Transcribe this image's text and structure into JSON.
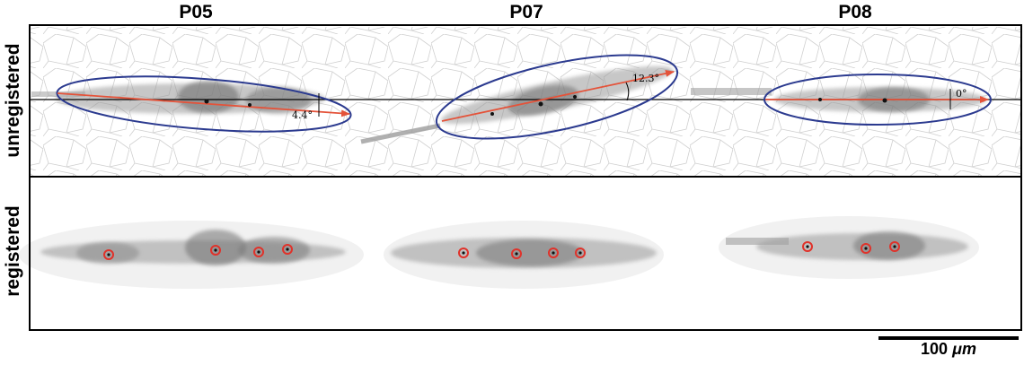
{
  "columns": [
    {
      "label": "P05",
      "angle_label": "4.4°"
    },
    {
      "label": "P07",
      "angle_label": "12.3°"
    },
    {
      "label": "P08",
      "angle_label": "0°"
    }
  ],
  "rows": {
    "unregistered": "unregistered",
    "registered": "registered"
  },
  "scale_bar": {
    "value": "100",
    "unit": "μm"
  },
  "colors": {
    "ellipse": "#2b3a8f",
    "axis_arrow": "#e4533a",
    "marker": "#e0322a",
    "tissue": "#3a3a3a",
    "background_cells": "#c8c8c8"
  }
}
